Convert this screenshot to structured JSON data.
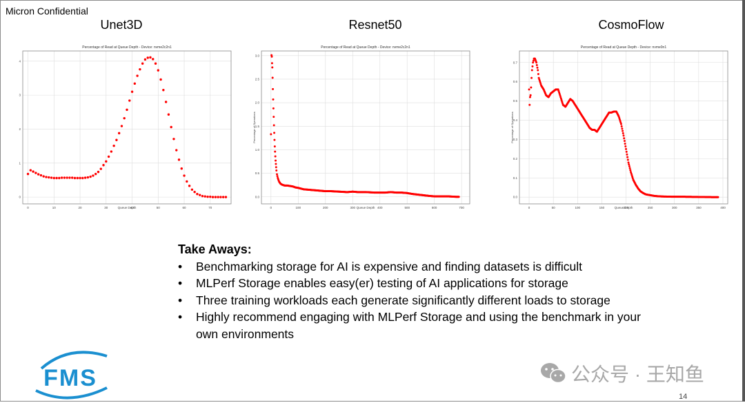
{
  "header": {
    "confidential": "Micron Confidential"
  },
  "charts": [
    {
      "label": "Unet3D"
    },
    {
      "label": "Resnet50"
    },
    {
      "label": "CosmoFlow"
    }
  ],
  "chart_data": [
    {
      "type": "scatter",
      "panel_label": "Unet3D",
      "title": "Percentage of Read at Queue Depth - Device: nvme2c2n1",
      "xlabel": "Queue Depth",
      "ylabel": "Percentage of Operations",
      "xlim": [
        -2,
        78
      ],
      "ylim": [
        -0.2,
        4.3
      ],
      "xticks": [
        0,
        10,
        20,
        30,
        40,
        50,
        60,
        70
      ],
      "yticks": [
        0,
        1,
        2,
        3,
        4
      ],
      "grid": true,
      "color": "#ff0000",
      "x": [
        0,
        1,
        2,
        3,
        4,
        5,
        6,
        7,
        8,
        9,
        10,
        11,
        12,
        13,
        14,
        15,
        16,
        17,
        18,
        19,
        20,
        21,
        22,
        23,
        24,
        25,
        26,
        27,
        28,
        29,
        30,
        31,
        32,
        33,
        34,
        35,
        36,
        37,
        38,
        39,
        40,
        41,
        42,
        43,
        44,
        45,
        46,
        47,
        48,
        49,
        50,
        51,
        52,
        53,
        54,
        55,
        56,
        57,
        58,
        59,
        60,
        61,
        62,
        63,
        64,
        65,
        66,
        67,
        68,
        69,
        70,
        71,
        72,
        73,
        74,
        75,
        76
      ],
      "y": [
        0.68,
        0.79,
        0.75,
        0.71,
        0.67,
        0.64,
        0.61,
        0.59,
        0.58,
        0.57,
        0.56,
        0.56,
        0.56,
        0.57,
        0.57,
        0.57,
        0.57,
        0.57,
        0.56,
        0.56,
        0.56,
        0.56,
        0.57,
        0.58,
        0.6,
        0.63,
        0.68,
        0.74,
        0.83,
        0.94,
        1.05,
        1.19,
        1.34,
        1.51,
        1.68,
        1.88,
        2.09,
        2.32,
        2.57,
        2.84,
        3.1,
        3.34,
        3.57,
        3.76,
        3.93,
        4.05,
        4.1,
        4.11,
        4.06,
        3.93,
        3.73,
        3.46,
        3.15,
        2.8,
        2.43,
        2.06,
        1.71,
        1.38,
        1.1,
        0.84,
        0.63,
        0.46,
        0.33,
        0.22,
        0.15,
        0.09,
        0.06,
        0.03,
        0.02,
        0.01,
        0.01,
        0.0,
        0.0,
        0.0,
        0.0,
        0.0,
        0.0
      ]
    },
    {
      "type": "scatter",
      "panel_label": "Resnet50",
      "title": "Percentage of Read at Queue Depth - Device: nvme2c2n1",
      "xlabel": "Queue Depth",
      "ylabel": "Percentage of Operations",
      "xlim": [
        -35,
        730
      ],
      "ylim": [
        -0.15,
        3.1
      ],
      "xticks": [
        0,
        100,
        200,
        300,
        400,
        500,
        600,
        700
      ],
      "yticks": [
        0.0,
        0.5,
        1.0,
        1.5,
        2.0,
        2.5,
        3.0
      ],
      "grid": true,
      "color": "#ff0000",
      "x": [
        0,
        2,
        3,
        4,
        5,
        6,
        7,
        8,
        9,
        10,
        11,
        12,
        13,
        14,
        15,
        16,
        17,
        18,
        19,
        20,
        22,
        25,
        30,
        35,
        40,
        50,
        60,
        70,
        80,
        90,
        100,
        120,
        140,
        160,
        180,
        200,
        220,
        250,
        280,
        300,
        320,
        350,
        380,
        400,
        420,
        440,
        460,
        480,
        500,
        520,
        550,
        580,
        600,
        620,
        650,
        680,
        690
      ],
      "y": [
        1.33,
        3.01,
        2.98,
        2.84,
        2.75,
        2.53,
        2.29,
        2.07,
        1.88,
        1.7,
        1.52,
        1.36,
        1.21,
        1.07,
        0.96,
        0.86,
        0.77,
        0.7,
        0.63,
        0.56,
        0.48,
        0.4,
        0.32,
        0.28,
        0.26,
        0.24,
        0.24,
        0.23,
        0.22,
        0.2,
        0.19,
        0.16,
        0.15,
        0.14,
        0.13,
        0.12,
        0.12,
        0.11,
        0.1,
        0.11,
        0.1,
        0.1,
        0.09,
        0.09,
        0.09,
        0.1,
        0.09,
        0.09,
        0.08,
        0.06,
        0.04,
        0.02,
        0.01,
        0.01,
        0.01,
        0.0,
        0.0
      ]
    },
    {
      "type": "scatter",
      "panel_label": "CosmoFlow",
      "title": "Percentage of Read at Queue Depth - Device: nvme0n1",
      "xlabel": "Queue Depth",
      "ylabel": "Percentage of Operations",
      "xlim": [
        -20,
        410
      ],
      "ylim": [
        -0.035,
        0.76
      ],
      "xticks": [
        0,
        50,
        100,
        150,
        200,
        250,
        300,
        350,
        400
      ],
      "yticks": [
        0.0,
        0.1,
        0.2,
        0.3,
        0.4,
        0.5,
        0.6,
        0.7
      ],
      "grid": true,
      "color": "#ff0000",
      "x": [
        0,
        1,
        2,
        3,
        4,
        5,
        6,
        8,
        10,
        12,
        15,
        18,
        20,
        25,
        30,
        35,
        40,
        45,
        50,
        55,
        60,
        65,
        70,
        75,
        80,
        85,
        90,
        95,
        100,
        105,
        110,
        115,
        120,
        125,
        130,
        135,
        140,
        145,
        150,
        155,
        160,
        165,
        170,
        175,
        180,
        185,
        190,
        195,
        200,
        205,
        210,
        215,
        220,
        225,
        230,
        235,
        240,
        250,
        260,
        270,
        280,
        300,
        320,
        350,
        380,
        390
      ],
      "y": [
        0.56,
        0.48,
        0.52,
        0.53,
        0.57,
        0.62,
        0.66,
        0.7,
        0.72,
        0.72,
        0.7,
        0.66,
        0.62,
        0.58,
        0.56,
        0.53,
        0.52,
        0.54,
        0.55,
        0.56,
        0.56,
        0.52,
        0.48,
        0.47,
        0.49,
        0.51,
        0.5,
        0.48,
        0.46,
        0.44,
        0.42,
        0.4,
        0.38,
        0.36,
        0.35,
        0.35,
        0.34,
        0.36,
        0.38,
        0.4,
        0.42,
        0.44,
        0.44,
        0.445,
        0.445,
        0.42,
        0.38,
        0.32,
        0.25,
        0.18,
        0.13,
        0.09,
        0.065,
        0.045,
        0.03,
        0.022,
        0.015,
        0.01,
        0.006,
        0.004,
        0.003,
        0.002,
        0.002,
        0.001,
        0.0,
        0.0
      ]
    }
  ],
  "takeaways": {
    "heading": "Take Aways:",
    "items": [
      "Benchmarking storage for AI is expensive and finding datasets is difficult",
      "MLPerf Storage enables easy(er) testing of AI applications for storage",
      "Three training workloads each generate significantly different loads to storage",
      "Highly recommend engaging with MLPerf Storage and using the benchmark in your own environments"
    ]
  },
  "footer": {
    "logo_text": "FMS",
    "watermark": "公众号 · 王知鱼",
    "page_number": "14"
  }
}
